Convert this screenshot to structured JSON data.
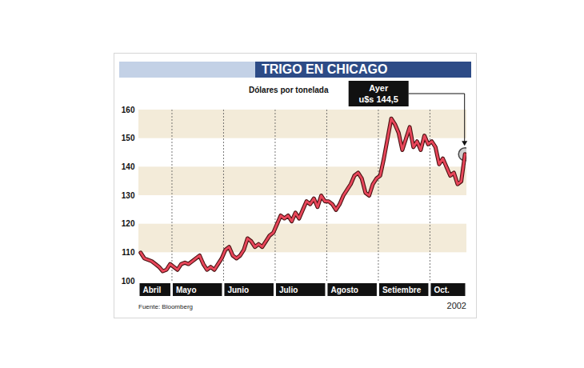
{
  "chart_data": {
    "type": "line",
    "title": "TRIGO EN CHICAGO",
    "subtitle": "Dólares por tonelada",
    "source": "Fuente: Bloomberg",
    "year_label": "2002",
    "annotation": [
      "Ayer",
      "u$s 144,5"
    ],
    "categories": [
      "Abril",
      null,
      null,
      null,
      null,
      null,
      null,
      null,
      null,
      "Mayo",
      null,
      null,
      null,
      null,
      null,
      null,
      null,
      null,
      null,
      null,
      null,
      null,
      null,
      "Junio",
      null,
      null,
      null,
      null,
      null,
      null,
      null,
      null,
      null,
      null,
      null,
      null,
      null,
      "Julio",
      null,
      null,
      null,
      null,
      null,
      null,
      null,
      null,
      null,
      null,
      null,
      null,
      null,
      "Agosto",
      null,
      null,
      null,
      null,
      null,
      null,
      null,
      null,
      null,
      null,
      null,
      null,
      null,
      "Setiembre",
      null,
      null,
      null,
      null,
      null,
      null,
      null,
      null,
      null,
      null,
      null,
      null,
      null,
      "Oct.",
      null,
      null,
      null,
      null,
      null,
      null,
      null,
      null,
      null
    ],
    "values": [
      110,
      108,
      107.5,
      107,
      106,
      105,
      103.5,
      104,
      106,
      105,
      104,
      106,
      106.5,
      106,
      107,
      108,
      109,
      106,
      104,
      105,
      104,
      106,
      108,
      111,
      112,
      109,
      108,
      109,
      111,
      115,
      114,
      112,
      113,
      112,
      114,
      116,
      117,
      120,
      123,
      122,
      123,
      121,
      124,
      122,
      125,
      128,
      127,
      129,
      126,
      130,
      128,
      128,
      127,
      125,
      127,
      130,
      132,
      134,
      137,
      138,
      136,
      131,
      130,
      134,
      136,
      137,
      143,
      150,
      157,
      155,
      152,
      146,
      150,
      154,
      147,
      149,
      146,
      151,
      148,
      149,
      147,
      141,
      143,
      140,
      137,
      138,
      134,
      135,
      144.5
    ],
    "color": "#e8465a",
    "ylim": [
      100,
      160
    ],
    "yticks": [
      100,
      110,
      120,
      130,
      140,
      150,
      160
    ],
    "grid": true
  }
}
